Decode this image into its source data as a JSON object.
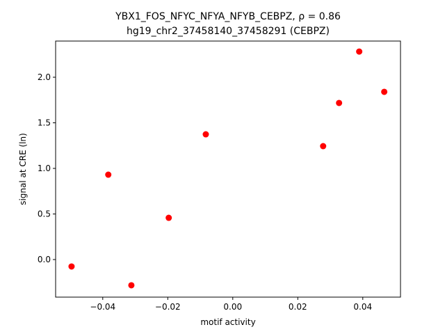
{
  "chart_data": {
    "type": "scatter",
    "title": "YBX1_FOS_NFYC_NFYA_NFYB_CEBPZ, ρ = 0.86",
    "subtitle": "hg19_chr2_37458140_37458291 (CEBPZ)",
    "x_label": "motif activity",
    "y_label": "signal at CRE (ln)",
    "series": [
      {
        "color": "#ff0000",
        "x": [
          -0.0496,
          -0.0312,
          -0.0383,
          -0.0197,
          -0.0083,
          0.0278,
          0.0327,
          0.0389,
          0.0466
        ],
        "values": [
          -0.076,
          -0.282,
          0.931,
          0.458,
          1.374,
          1.244,
          1.718,
          2.282,
          1.84
        ]
      }
    ],
    "xlim": [
      -0.0545,
      0.0516
    ],
    "ylim": [
      -0.412,
      2.397
    ],
    "xticks": [
      {
        "value": -0.04,
        "label": "−0.04"
      },
      {
        "value": -0.02,
        "label": "−0.02"
      },
      {
        "value": 0,
        "label": "0.00"
      },
      {
        "value": 0.02,
        "label": "0.02"
      },
      {
        "value": 0.04,
        "label": "0.04"
      }
    ],
    "yticks": [
      {
        "value": 0,
        "label": "0.0"
      },
      0.5,
      {
        "value": 1,
        "label": "1.0"
      },
      1.5,
      {
        "value": 2,
        "label": "2.0"
      }
    ],
    "grid": false
  }
}
